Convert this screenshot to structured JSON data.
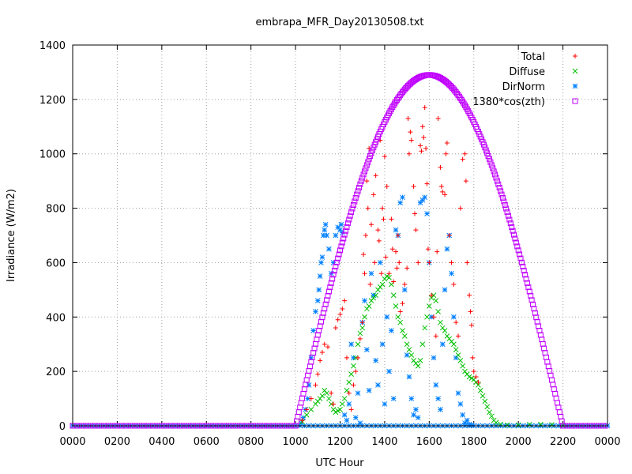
{
  "chart_data": {
    "type": "scatter",
    "title": "embrapa_MFR_Day20130508.txt",
    "xlabel": "UTC Hour",
    "ylabel": "Irradiance (W/m2)",
    "xlim": [
      0,
      24
    ],
    "ylim": [
      0,
      1400
    ],
    "grid": true,
    "legend_position": "top-right",
    "x_ticks": [
      {
        "value": 0,
        "label": "0000"
      },
      {
        "value": 2,
        "label": "0200"
      },
      {
        "value": 4,
        "label": "0400"
      },
      {
        "value": 6,
        "label": "0600"
      },
      {
        "value": 8,
        "label": "0800"
      },
      {
        "value": 10,
        "label": "1000"
      },
      {
        "value": 12,
        "label": "1200"
      },
      {
        "value": 14,
        "label": "1400"
      },
      {
        "value": 16,
        "label": "1600"
      },
      {
        "value": 18,
        "label": "1800"
      },
      {
        "value": 20,
        "label": "2000"
      },
      {
        "value": 22,
        "label": "2200"
      },
      {
        "value": 24,
        "label": "0000"
      }
    ],
    "y_ticks": [
      0,
      200,
      400,
      600,
      800,
      1000,
      1200,
      1400
    ],
    "series": [
      {
        "name": "Total",
        "marker": "plus",
        "color": "#ff0000",
        "points": [
          [
            10.3,
            20
          ],
          [
            10.5,
            60
          ],
          [
            10.7,
            100
          ],
          [
            10.9,
            150
          ],
          [
            11.0,
            190
          ],
          [
            11.1,
            240
          ],
          [
            11.2,
            270
          ],
          [
            11.3,
            300
          ],
          [
            11.45,
            290
          ],
          [
            11.6,
            120
          ],
          [
            11.7,
            80
          ],
          [
            11.8,
            360
          ],
          [
            11.9,
            390
          ],
          [
            12.0,
            410
          ],
          [
            12.1,
            430
          ],
          [
            12.2,
            460
          ],
          [
            12.3,
            250
          ],
          [
            12.4,
            120
          ],
          [
            12.5,
            60
          ],
          [
            12.6,
            150
          ],
          [
            12.7,
            200
          ],
          [
            12.8,
            250
          ],
          [
            12.9,
            320
          ],
          [
            13.0,
            380
          ],
          [
            13.05,
            630
          ],
          [
            13.1,
            560
          ],
          [
            13.15,
            700
          ],
          [
            13.2,
            900
          ],
          [
            13.25,
            800
          ],
          [
            13.3,
            1020
          ],
          [
            13.35,
            520
          ],
          [
            13.4,
            740
          ],
          [
            13.5,
            850
          ],
          [
            13.55,
            600
          ],
          [
            13.6,
            920
          ],
          [
            13.7,
            720
          ],
          [
            13.75,
            680
          ],
          [
            13.8,
            1050
          ],
          [
            13.85,
            560
          ],
          [
            13.9,
            800
          ],
          [
            13.95,
            760
          ],
          [
            14.0,
            990
          ],
          [
            14.05,
            620
          ],
          [
            14.1,
            880
          ],
          [
            14.2,
            560
          ],
          [
            14.3,
            760
          ],
          [
            14.35,
            650
          ],
          [
            14.4,
            530
          ],
          [
            14.5,
            640
          ],
          [
            14.55,
            580
          ],
          [
            14.6,
            700
          ],
          [
            14.65,
            600
          ],
          [
            14.7,
            420
          ],
          [
            14.8,
            450
          ],
          [
            14.9,
            520
          ],
          [
            15.0,
            580
          ],
          [
            15.05,
            1130
          ],
          [
            15.1,
            1000
          ],
          [
            15.15,
            1080
          ],
          [
            15.2,
            1050
          ],
          [
            15.3,
            880
          ],
          [
            15.35,
            780
          ],
          [
            15.4,
            720
          ],
          [
            15.5,
            600
          ],
          [
            15.6,
            1030
          ],
          [
            15.65,
            1010
          ],
          [
            15.7,
            1100
          ],
          [
            15.75,
            1060
          ],
          [
            15.8,
            1170
          ],
          [
            15.85,
            1020
          ],
          [
            15.9,
            890
          ],
          [
            15.95,
            650
          ],
          [
            16.0,
            600
          ],
          [
            16.1,
            480
          ],
          [
            16.2,
            400
          ],
          [
            16.3,
            330
          ],
          [
            16.35,
            640
          ],
          [
            16.4,
            1130
          ],
          [
            16.5,
            950
          ],
          [
            16.55,
            880
          ],
          [
            16.6,
            860
          ],
          [
            16.7,
            850
          ],
          [
            16.75,
            1000
          ],
          [
            16.8,
            1040
          ],
          [
            16.9,
            700
          ],
          [
            17.0,
            600
          ],
          [
            17.1,
            520
          ],
          [
            17.2,
            380
          ],
          [
            17.3,
            330
          ],
          [
            17.4,
            800
          ],
          [
            17.5,
            980
          ],
          [
            17.6,
            1000
          ],
          [
            17.65,
            900
          ],
          [
            17.7,
            600
          ],
          [
            17.8,
            480
          ],
          [
            17.85,
            420
          ],
          [
            17.9,
            370
          ],
          [
            17.95,
            250
          ],
          [
            18.0,
            200
          ],
          [
            18.1,
            180
          ],
          [
            18.2,
            160
          ]
        ]
      },
      {
        "name": "Diffuse",
        "marker": "cross",
        "color": "#00c000",
        "points": [
          [
            10.3,
            15
          ],
          [
            10.5,
            40
          ],
          [
            10.7,
            60
          ],
          [
            10.9,
            80
          ],
          [
            11.0,
            90
          ],
          [
            11.1,
            100
          ],
          [
            11.2,
            110
          ],
          [
            11.3,
            130
          ],
          [
            11.4,
            120
          ],
          [
            11.5,
            100
          ],
          [
            11.6,
            80
          ],
          [
            11.7,
            60
          ],
          [
            11.8,
            50
          ],
          [
            11.9,
            55
          ],
          [
            12.0,
            60
          ],
          [
            12.1,
            80
          ],
          [
            12.2,
            100
          ],
          [
            12.3,
            130
          ],
          [
            12.4,
            160
          ],
          [
            12.5,
            190
          ],
          [
            12.6,
            220
          ],
          [
            12.7,
            250
          ],
          [
            12.8,
            300
          ],
          [
            12.9,
            340
          ],
          [
            13.0,
            360
          ],
          [
            13.1,
            400
          ],
          [
            13.2,
            430
          ],
          [
            13.3,
            440
          ],
          [
            13.4,
            460
          ],
          [
            13.5,
            470
          ],
          [
            13.6,
            480
          ],
          [
            13.7,
            500
          ],
          [
            13.8,
            510
          ],
          [
            13.9,
            520
          ],
          [
            14.0,
            540
          ],
          [
            14.1,
            550
          ],
          [
            14.2,
            545
          ],
          [
            14.3,
            520
          ],
          [
            14.4,
            480
          ],
          [
            14.5,
            440
          ],
          [
            14.6,
            400
          ],
          [
            14.7,
            380
          ],
          [
            14.8,
            350
          ],
          [
            14.9,
            330
          ],
          [
            15.0,
            300
          ],
          [
            15.1,
            280
          ],
          [
            15.2,
            260
          ],
          [
            15.3,
            240
          ],
          [
            15.4,
            230
          ],
          [
            15.5,
            220
          ],
          [
            15.6,
            240
          ],
          [
            15.7,
            300
          ],
          [
            15.8,
            360
          ],
          [
            15.9,
            400
          ],
          [
            16.0,
            440
          ],
          [
            16.1,
            470
          ],
          [
            16.2,
            480
          ],
          [
            16.3,
            460
          ],
          [
            16.4,
            420
          ],
          [
            16.5,
            380
          ],
          [
            16.6,
            360
          ],
          [
            16.7,
            350
          ],
          [
            16.8,
            330
          ],
          [
            16.9,
            320
          ],
          [
            17.0,
            310
          ],
          [
            17.1,
            300
          ],
          [
            17.2,
            280
          ],
          [
            17.3,
            260
          ],
          [
            17.4,
            240
          ],
          [
            17.5,
            220
          ],
          [
            17.6,
            200
          ],
          [
            17.7,
            190
          ],
          [
            17.8,
            180
          ],
          [
            17.9,
            175
          ],
          [
            18.0,
            170
          ],
          [
            18.1,
            160
          ],
          [
            18.2,
            150
          ],
          [
            18.3,
            130
          ],
          [
            18.4,
            110
          ],
          [
            18.5,
            90
          ],
          [
            18.6,
            70
          ],
          [
            18.7,
            50
          ],
          [
            18.8,
            35
          ],
          [
            18.9,
            20
          ],
          [
            19.0,
            12
          ],
          [
            19.2,
            6
          ],
          [
            19.5,
            3
          ],
          [
            20.0,
            3
          ],
          [
            20.5,
            5
          ],
          [
            21.0,
            5
          ],
          [
            21.5,
            4
          ],
          [
            22.0,
            2
          ]
        ]
      },
      {
        "name": "DirNorm",
        "marker": "star",
        "color": "#0080ff",
        "points": [
          [
            10.25,
            10
          ],
          [
            10.35,
            30
          ],
          [
            10.45,
            60
          ],
          [
            10.55,
            100
          ],
          [
            10.6,
            150
          ],
          [
            10.7,
            250
          ],
          [
            10.8,
            350
          ],
          [
            10.9,
            420
          ],
          [
            11.0,
            460
          ],
          [
            11.05,
            500
          ],
          [
            11.1,
            550
          ],
          [
            11.15,
            600
          ],
          [
            11.2,
            620
          ],
          [
            11.25,
            700
          ],
          [
            11.3,
            720
          ],
          [
            11.35,
            740
          ],
          [
            11.4,
            700
          ],
          [
            11.5,
            650
          ],
          [
            11.6,
            560
          ],
          [
            11.7,
            600
          ],
          [
            11.8,
            700
          ],
          [
            11.9,
            730
          ],
          [
            12.0,
            720
          ],
          [
            12.05,
            740
          ],
          [
            12.1,
            710
          ],
          [
            12.2,
            40
          ],
          [
            12.3,
            20
          ],
          [
            12.4,
            80
          ],
          [
            12.5,
            300
          ],
          [
            12.6,
            250
          ],
          [
            12.7,
            30
          ],
          [
            12.8,
            120
          ],
          [
            12.9,
            10
          ],
          [
            13.0,
            380
          ],
          [
            13.1,
            460
          ],
          [
            13.2,
            280
          ],
          [
            13.3,
            130
          ],
          [
            13.4,
            560
          ],
          [
            13.5,
            480
          ],
          [
            13.6,
            240
          ],
          [
            13.7,
            150
          ],
          [
            13.8,
            600
          ],
          [
            13.9,
            300
          ],
          [
            14.0,
            80
          ],
          [
            14.1,
            400
          ],
          [
            14.2,
            200
          ],
          [
            14.3,
            350
          ],
          [
            14.4,
            100
          ],
          [
            14.5,
            720
          ],
          [
            14.6,
            700
          ],
          [
            14.7,
            820
          ],
          [
            14.8,
            840
          ],
          [
            14.9,
            500
          ],
          [
            15.0,
            260
          ],
          [
            15.1,
            180
          ],
          [
            15.2,
            100
          ],
          [
            15.3,
            40
          ],
          [
            15.4,
            60
          ],
          [
            15.5,
            30
          ],
          [
            15.6,
            820
          ],
          [
            15.7,
            830
          ],
          [
            15.8,
            840
          ],
          [
            15.9,
            780
          ],
          [
            16.0,
            600
          ],
          [
            16.1,
            400
          ],
          [
            16.2,
            250
          ],
          [
            16.3,
            150
          ],
          [
            16.4,
            100
          ],
          [
            16.5,
            60
          ],
          [
            16.6,
            300
          ],
          [
            16.7,
            500
          ],
          [
            16.8,
            650
          ],
          [
            16.9,
            700
          ],
          [
            17.0,
            560
          ],
          [
            17.1,
            400
          ],
          [
            17.2,
            250
          ],
          [
            17.3,
            120
          ],
          [
            17.4,
            80
          ],
          [
            17.5,
            40
          ],
          [
            17.6,
            10
          ],
          [
            17.7,
            20
          ],
          [
            17.8,
            5
          ],
          [
            17.9,
            3
          ]
        ]
      },
      {
        "name": "1380*cos(zth)",
        "marker": "square",
        "color": "#c000ff",
        "model": {
          "peak": 1290,
          "peak_hour": 16.0,
          "start_hour": 10.0,
          "end_hour": 22.0,
          "step_hour": 0.05
        }
      }
    ]
  }
}
